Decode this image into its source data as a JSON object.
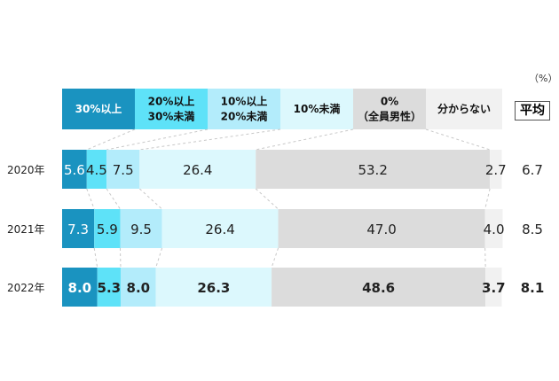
{
  "unit_label": "（%）",
  "avg_header": "平均",
  "colors": [
    "#1a93c0",
    "#5ee2f8",
    "#b3ecfb",
    "#dcf8fd",
    "#dcdcdc",
    "#f1f1f1"
  ],
  "chart_data": {
    "type": "bar",
    "orientation": "horizontal",
    "stacked": true,
    "xlim": [
      0,
      100
    ],
    "categories": [
      "2020年",
      "2021年",
      "2022年"
    ],
    "series": [
      {
        "name": "30%以上",
        "values": [
          5.6,
          7.3,
          8.0
        ]
      },
      {
        "name": "20%以上\n30%未満",
        "values": [
          4.5,
          5.9,
          5.3
        ]
      },
      {
        "name": "10%以上\n20%未満",
        "values": [
          7.5,
          9.5,
          8.0
        ]
      },
      {
        "name": "10%未満",
        "values": [
          26.4,
          26.4,
          26.3
        ]
      },
      {
        "name": "0%\n（全員男性）",
        "values": [
          53.2,
          47.0,
          48.6
        ]
      },
      {
        "name": "分からない",
        "values": [
          2.7,
          4.0,
          3.7
        ]
      }
    ],
    "value_labels": [
      [
        "5.6",
        "4.5",
        "7.5",
        "26.4",
        "53.2",
        "2.7"
      ],
      [
        "7.3",
        "5.9",
        "9.5",
        "26.4",
        "47.0",
        "4.0"
      ],
      [
        "8.0",
        "5.3",
        "8.0",
        "26.3",
        "48.6",
        "3.7"
      ]
    ],
    "averages": [
      "6.7",
      "8.5",
      "8.1"
    ],
    "bold_rows": [
      2
    ]
  }
}
